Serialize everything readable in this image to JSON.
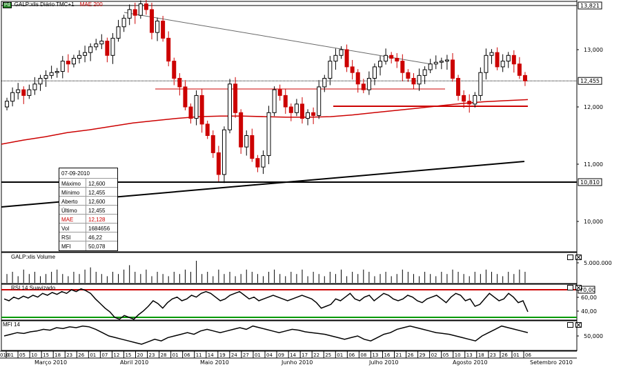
{
  "header": {
    "logo": "Pd",
    "title": "GALP:xlis Diário TMC+1",
    "indicator": "MAE 200"
  },
  "info_box": {
    "date": "07-09-2010",
    "rows": [
      {
        "label": "Máximo",
        "value": "12,600"
      },
      {
        "label": "Mínimo",
        "value": "12,455"
      },
      {
        "label": "Aberto",
        "value": "12,600"
      },
      {
        "label": "Último",
        "value": "12,455"
      },
      {
        "label": "MAE",
        "value": "12,128"
      },
      {
        "label": "Vol",
        "value": "1684656"
      },
      {
        "label": "RSI",
        "value": "46,22"
      },
      {
        "label": "MFI",
        "value": "50,078"
      }
    ]
  },
  "panes": {
    "volume": {
      "title": "GALP:xlis Volume",
      "tick": "5.000.000"
    },
    "rsi": {
      "title": "RSI 14 Suavizado",
      "ticks": [
        "70,00",
        "60,00",
        "40,00"
      ]
    },
    "mfi": {
      "title": "MFI 14",
      "tick": "50,000"
    }
  },
  "colors": {
    "up": "#000000",
    "down": "#cc0000",
    "mae": "#cc0000",
    "rsi_top": "#cc0000",
    "rsi_bottom": "#009900"
  },
  "chart_data": {
    "type": "candlestick",
    "price_axis": {
      "ticks": [
        "13,000",
        "12,000",
        "11,000",
        "10,000"
      ],
      "marker_values": [
        "13,821",
        "12,455",
        "10,810"
      ]
    },
    "date_labels": [
      "01",
      "05",
      "10",
      "15",
      "18",
      "23",
      "26",
      "01",
      "07",
      "12",
      "15",
      "20",
      "23",
      "28",
      "01",
      "06",
      "11",
      "14",
      "19",
      "24",
      "27",
      "01",
      "04",
      "09",
      "14",
      "17",
      "22",
      "25",
      "01",
      "06",
      "08",
      "13",
      "16",
      "21",
      "26",
      "29",
      "02",
      "05",
      "10",
      "13",
      "18",
      "23",
      "26",
      "01",
      "06"
    ],
    "month_labels": [
      "Março 2010",
      "Abril 2010",
      "Maio 2010",
      "Junho 2010",
      "Julho 2010",
      "Agosto 2010",
      "Setembro 2010"
    ],
    "axis_corner": "010",
    "closes": [
      12.1,
      12.25,
      12.3,
      12.2,
      12.3,
      12.4,
      12.5,
      12.55,
      12.6,
      12.62,
      12.8,
      12.75,
      12.85,
      12.9,
      12.95,
      13.05,
      13.1,
      13.15,
      12.9,
      13.2,
      13.4,
      13.55,
      13.7,
      13.6,
      13.8,
      13.7,
      13.3,
      13.5,
      13.2,
      12.8,
      12.5,
      12.35,
      12.0,
      11.8,
      12.2,
      11.7,
      11.5,
      11.2,
      10.82,
      11.6,
      12.4,
      11.9,
      11.3,
      11.5,
      11.1,
      10.95,
      11.15,
      11.9,
      12.3,
      12.2,
      12.0,
      11.9,
      12.05,
      11.8,
      11.9,
      11.85,
      12.35,
      12.5,
      12.8,
      12.9,
      13.0,
      12.7,
      12.6,
      12.4,
      12.3,
      12.5,
      12.7,
      12.8,
      12.9,
      12.85,
      12.8,
      12.6,
      12.5,
      12.4,
      12.55,
      12.65,
      12.75,
      12.78,
      12.8,
      12.82,
      12.5,
      12.2,
      12.1,
      12.05,
      12.2,
      12.6,
      12.9,
      12.95,
      12.7,
      12.8,
      12.9,
      12.75,
      12.55,
      12.455
    ],
    "mae200": [
      11.35,
      11.42,
      11.48,
      11.55,
      11.6,
      11.66,
      11.72,
      11.76,
      11.8,
      11.83,
      11.84,
      11.84,
      11.83,
      11.82,
      11.82,
      11.83,
      11.86,
      11.9,
      11.94,
      11.98,
      12.02,
      12.06,
      12.09,
      12.11,
      12.128
    ],
    "volume": [
      4,
      5,
      3,
      6,
      4,
      5,
      3,
      4,
      5,
      6,
      4,
      3,
      5,
      4,
      6,
      7,
      5,
      4,
      3,
      5,
      4,
      6,
      8,
      5,
      4,
      6,
      3,
      5,
      4,
      3,
      5,
      4,
      6,
      5,
      10,
      4,
      5,
      3,
      6,
      4,
      5,
      3,
      4,
      6,
      5,
      4,
      3,
      5,
      6,
      4,
      3,
      5,
      4,
      6,
      3,
      5,
      4,
      3,
      5,
      4,
      6,
      3,
      5,
      4,
      6,
      5,
      3,
      4,
      5,
      3,
      4,
      6,
      5,
      4,
      3,
      5,
      4,
      3,
      5,
      4,
      6,
      5,
      4,
      3,
      5,
      4,
      6,
      5,
      4,
      3,
      5,
      4,
      6,
      5
    ],
    "rsi": [
      60,
      58,
      62,
      60,
      63,
      61,
      64,
      62,
      66,
      64,
      67,
      65,
      68,
      66,
      70,
      68,
      71,
      69,
      66,
      60,
      55,
      50,
      46,
      40,
      38,
      42,
      40,
      38,
      43,
      47,
      52,
      58,
      55,
      50,
      56,
      60,
      62,
      58,
      60,
      64,
      62,
      66,
      68,
      66,
      62,
      58,
      60,
      64,
      66,
      68,
      64,
      60,
      62,
      58,
      60,
      62,
      64,
      62,
      60,
      58,
      60,
      62,
      64,
      62,
      60,
      56,
      50,
      52,
      54,
      60,
      58,
      62,
      66,
      60,
      58,
      62,
      64,
      58,
      62,
      66,
      64,
      60,
      58,
      60,
      64,
      62,
      58,
      56,
      60,
      62,
      64,
      60,
      56,
      62,
      66,
      64,
      58,
      60,
      52,
      54,
      60,
      66,
      62,
      58,
      60,
      66,
      62,
      56,
      58,
      46
    ],
    "mfi": [
      50,
      52,
      54,
      53,
      55,
      56,
      58,
      57,
      60,
      59,
      61,
      60,
      62,
      61,
      58,
      54,
      50,
      48,
      46,
      44,
      42,
      40,
      43,
      46,
      44,
      48,
      50,
      52,
      54,
      52,
      56,
      58,
      56,
      54,
      56,
      58,
      60,
      58,
      62,
      60,
      58,
      56,
      54,
      56,
      58,
      57,
      55,
      54,
      53,
      52,
      50,
      48,
      46,
      48,
      50,
      46,
      44,
      48,
      52,
      54,
      58,
      60,
      62,
      60,
      58,
      56,
      54,
      53,
      52,
      50,
      48,
      46,
      44,
      50,
      54,
      58,
      62,
      60,
      58,
      56,
      54
    ],
    "channels": {
      "downtrend": "from April high to August",
      "support_long": "rising black line",
      "horizontal_red": [
        "12,4",
        "12,0"
      ]
    }
  }
}
